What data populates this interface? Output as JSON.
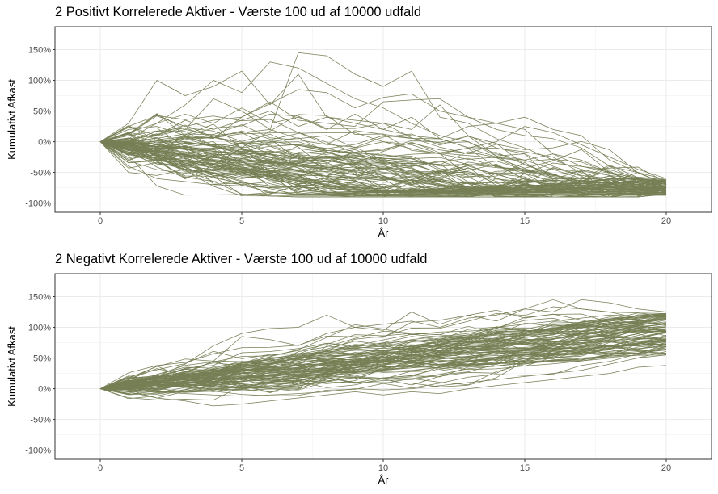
{
  "chart_data": [
    {
      "type": "line",
      "title": "2 Positivt Korrelerede Aktiver - Værste 100 ud af 10000 udfald",
      "xlabel": "År",
      "ylabel": "Kumulativt Afkast",
      "xlim": [
        0,
        20
      ],
      "ylim": [
        -1.0,
        1.5
      ],
      "x_ticks": [
        0,
        5,
        10,
        15,
        20
      ],
      "y_ticks": [
        -1.0,
        -0.5,
        0.0,
        0.5,
        1.0,
        1.5
      ],
      "y_tick_labels": [
        "-100%",
        "-50%",
        "0%",
        "50%",
        "100%",
        "150%"
      ],
      "n_series": 100,
      "line_color": "#767f55",
      "grid": true,
      "legend": "none",
      "x": [
        0,
        1,
        2,
        3,
        4,
        5,
        6,
        7,
        8,
        9,
        10,
        11,
        12,
        13,
        14,
        15,
        16,
        17,
        18,
        19,
        20
      ],
      "series": [
        {
          "values": [
            0,
            0.12,
            0.42,
            0.25,
            0.35,
            0.4,
            0.62,
            0.85,
            0.8,
            0.55,
            0.72,
            0.78,
            0.5,
            0.4,
            0.2,
            0.1,
            0.05,
            -0.1,
            -0.4,
            -0.5,
            -0.7
          ]
        },
        {
          "values": [
            0,
            0.05,
            0.3,
            0.6,
            1.0,
            0.8,
            1.3,
            1.2,
            0.95,
            0.7,
            0.55,
            0.3,
            0.1,
            0.0,
            -0.2,
            -0.3,
            -0.45,
            -0.6,
            -0.62,
            -0.65,
            -0.68
          ]
        },
        {
          "values": [
            0,
            0.3,
            1.0,
            0.75,
            0.9,
            1.15,
            0.6,
            1.1,
            0.4,
            0.35,
            0.3,
            0.2,
            0.6,
            0.1,
            -0.1,
            -0.2,
            -0.4,
            -0.55,
            -0.6,
            -0.62,
            -0.66
          ]
        },
        {
          "values": [
            0,
            0.15,
            0.3,
            0.45,
            0.3,
            0.55,
            0.3,
            0.4,
            0.2,
            0.45,
            0.2,
            0.4,
            0.05,
            0.25,
            0.3,
            0.2,
            -0.2,
            -0.3,
            -0.5,
            -0.6,
            -0.64
          ]
        },
        {
          "values": [
            0,
            0.2,
            0.25,
            0.1,
            0.05,
            0.4,
            0.65,
            0.35,
            0.3,
            0.25,
            0.65,
            0.68,
            0.7,
            0.4,
            0.3,
            0.4,
            0.2,
            0.1,
            -0.3,
            -0.5,
            -0.62
          ]
        },
        {
          "values": [
            0,
            0.1,
            0.45,
            0.2,
            0.7,
            0.5,
            0.2,
            1.45,
            1.4,
            1.1,
            0.9,
            1.15,
            0.4,
            0.3,
            0.05,
            -0.1,
            -0.3,
            -0.45,
            -0.55,
            -0.6,
            -0.62
          ]
        },
        {
          "values": [
            0,
            0.05,
            0.1,
            0.35,
            0.2,
            0.35,
            0.5,
            0.25,
            0.4,
            0.3,
            0.2,
            0.1,
            0.05,
            -0.1,
            0.0,
            0.25,
            0.15,
            -0.05,
            -0.25,
            -0.45,
            -0.6
          ]
        },
        {
          "values": [
            0,
            0.25,
            0.1,
            0.2,
            0.1,
            0.15,
            0.2,
            0.05,
            0.1,
            -0.1,
            0.0,
            -0.05,
            -0.2,
            -0.1,
            -0.25,
            -0.3,
            -0.2,
            -0.4,
            -0.5,
            -0.65,
            -0.72
          ]
        },
        {
          "values": [
            0,
            -0.5,
            -0.55,
            -0.45,
            -0.5,
            -0.6,
            -0.55,
            -0.65,
            -0.6,
            -0.7,
            -0.75,
            -0.72,
            -0.78,
            -0.76,
            -0.8,
            -0.78,
            -0.82,
            -0.8,
            -0.84,
            -0.83,
            -0.86
          ]
        },
        {
          "values": [
            0,
            -0.4,
            -0.6,
            -0.65,
            -0.7,
            -0.72,
            -0.75,
            -0.74,
            -0.76,
            -0.78,
            -0.8,
            -0.79,
            -0.81,
            -0.8,
            -0.82,
            -0.81,
            -0.83,
            -0.82,
            -0.84,
            -0.85,
            -0.82
          ]
        }
      ]
    },
    {
      "type": "line",
      "title": "2 Negativt Korrelerede Aktiver - Værste 100 ud af 10000 udfald",
      "xlabel": "År",
      "ylabel": "Kumulativt Afkast",
      "xlim": [
        0,
        20
      ],
      "ylim": [
        -1.0,
        1.5
      ],
      "x_ticks": [
        0,
        5,
        10,
        15,
        20
      ],
      "y_ticks": [
        -1.0,
        -0.5,
        0.0,
        0.5,
        1.0,
        1.5
      ],
      "y_tick_labels": [
        "-100%",
        "-50%",
        "0%",
        "50%",
        "100%",
        "150%"
      ],
      "n_series": 100,
      "line_color": "#767f55",
      "grid": true,
      "legend": "none",
      "x": [
        0,
        1,
        2,
        3,
        4,
        5,
        6,
        7,
        8,
        9,
        10,
        11,
        12,
        13,
        14,
        15,
        16,
        17,
        18,
        19,
        20
      ],
      "series": [
        {
          "values": [
            0,
            0.1,
            0.2,
            0.4,
            0.7,
            0.9,
            0.98,
            1.0,
            1.2,
            1.0,
            1.05,
            1.1,
            1.0,
            1.15,
            1.2,
            1.3,
            1.45,
            1.3,
            1.25,
            1.15,
            1.2
          ]
        },
        {
          "values": [
            0,
            0.05,
            0.15,
            0.25,
            0.45,
            0.85,
            0.8,
            0.7,
            0.9,
            1.0,
            0.95,
            1.25,
            1.05,
            1.2,
            1.1,
            1.3,
            1.25,
            1.45,
            1.4,
            1.3,
            1.25
          ]
        },
        {
          "values": [
            0,
            -0.05,
            -0.15,
            -0.2,
            -0.28,
            -0.25,
            -0.2,
            -0.15,
            -0.1,
            -0.05,
            -0.1,
            -0.05,
            -0.08,
            0.0,
            0.05,
            0.1,
            0.15,
            0.2,
            0.25,
            0.35,
            0.38
          ]
        },
        {
          "values": [
            0,
            -0.02,
            -0.05,
            -0.08,
            -0.1,
            -0.12,
            -0.1,
            -0.08,
            -0.05,
            0.0,
            -0.02,
            0.0,
            0.05,
            0.1,
            0.15,
            0.2,
            0.25,
            0.3,
            0.4,
            0.5,
            0.55
          ]
        },
        {
          "values": [
            0,
            0.02,
            0.05,
            0.08,
            0.1,
            0.12,
            0.15,
            0.18,
            0.2,
            0.25,
            0.28,
            0.3,
            0.35,
            0.4,
            0.42,
            0.45,
            0.5,
            0.55,
            0.65,
            0.75,
            0.78
          ]
        },
        {
          "values": [
            0,
            0.08,
            0.12,
            0.18,
            0.25,
            0.3,
            0.35,
            0.42,
            0.48,
            0.52,
            0.58,
            0.62,
            0.7,
            0.75,
            0.8,
            0.9,
            0.95,
            1.0,
            1.05,
            1.1,
            1.15
          ]
        },
        {
          "values": [
            0,
            0.06,
            0.1,
            0.15,
            0.2,
            0.25,
            0.3,
            0.32,
            0.4,
            0.45,
            0.5,
            0.55,
            0.6,
            0.68,
            0.7,
            0.78,
            0.85,
            0.9,
            0.95,
            1.0,
            1.05
          ]
        },
        {
          "values": [
            0,
            0.03,
            0.08,
            0.1,
            0.12,
            0.18,
            0.22,
            0.28,
            0.3,
            0.35,
            0.4,
            0.45,
            0.5,
            0.52,
            0.6,
            0.62,
            0.7,
            0.75,
            0.8,
            0.9,
            0.95
          ]
        },
        {
          "values": [
            0,
            0.04,
            0.06,
            0.04,
            0.08,
            0.12,
            0.18,
            0.2,
            0.24,
            0.28,
            0.3,
            0.34,
            0.4,
            0.44,
            0.5,
            0.55,
            0.58,
            0.64,
            0.7,
            0.8,
            0.85
          ]
        },
        {
          "values": [
            0,
            0.1,
            0.18,
            0.28,
            0.32,
            0.38,
            0.45,
            0.55,
            0.6,
            0.65,
            0.72,
            0.8,
            0.85,
            0.9,
            1.0,
            1.05,
            1.1,
            1.15,
            1.2,
            1.18,
            1.22
          ]
        }
      ]
    }
  ]
}
